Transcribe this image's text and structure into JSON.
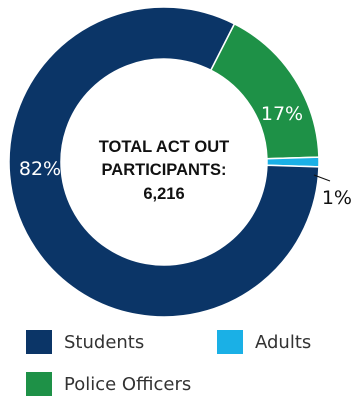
{
  "chart_data": {
    "type": "pie",
    "title": "",
    "center_label": {
      "line1": "TOTAL ACT OUT",
      "line2": "PARTICIPANTS:",
      "line3": "6,216"
    },
    "slices": [
      {
        "name": "Police Officers",
        "value": 17,
        "label": "17%",
        "color": "#1e9147"
      },
      {
        "name": "Adults",
        "value": 1,
        "label": "1%",
        "color": "#1ab0e6"
      },
      {
        "name": "Students",
        "value": 82,
        "label": "82%",
        "color": "#0b3567"
      }
    ],
    "start_angle_deg": 27,
    "legend": {
      "placement": "bottom",
      "items": [
        {
          "label": "Students",
          "color": "#0b3567"
        },
        {
          "label": "Adults",
          "color": "#1ab0e6"
        },
        {
          "label": "Police Officers",
          "color": "#1e9147"
        }
      ]
    }
  }
}
